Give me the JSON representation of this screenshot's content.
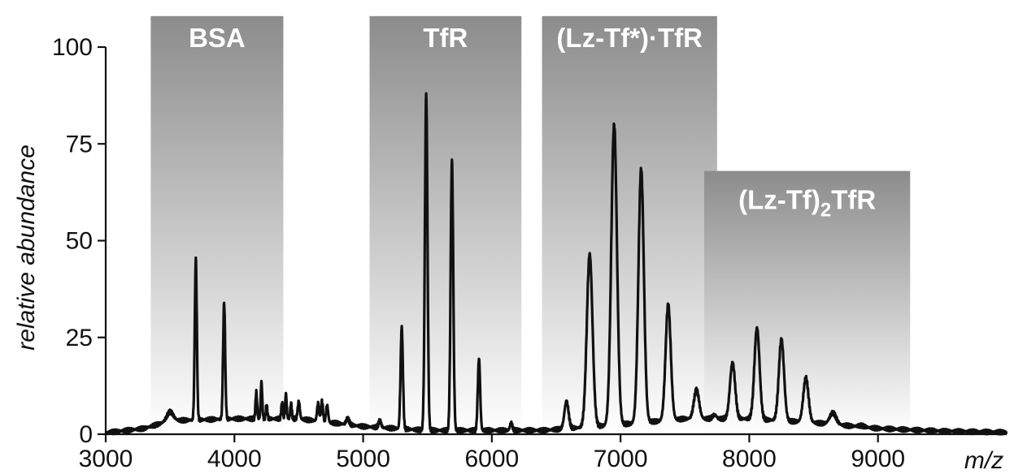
{
  "chart_data": {
    "type": "line",
    "title": "",
    "xlabel": "m/z",
    "ylabel": "relative abundance",
    "xlim": [
      3000,
      10000
    ],
    "ylim": [
      0,
      100
    ],
    "x_ticks": [
      3000,
      4000,
      5000,
      6000,
      7000,
      8000,
      9000
    ],
    "y_ticks": [
      0,
      25,
      50,
      75,
      100
    ],
    "grid": false,
    "legend": "none",
    "line_color": "#111111",
    "highlighted_regions": [
      {
        "label": "BSA",
        "label_sub": "",
        "label_end": "",
        "x_start": 3350,
        "x_end": 4380,
        "y_top": 108
      },
      {
        "label": "TfR",
        "label_sub": "",
        "label_end": "",
        "x_start": 5050,
        "x_end": 6230,
        "y_top": 108
      },
      {
        "label": "(Lz-Tf*)·TfR",
        "label_sub": "",
        "label_end": "",
        "x_start": 6390,
        "x_end": 7750,
        "y_top": 108
      },
      {
        "label": "(Lz-Tf)",
        "label_sub": "2",
        "label_end": "TfR",
        "x_start": 7650,
        "x_end": 9250,
        "y_top": 68
      }
    ],
    "region_colors": {
      "top": "#8c8c8c",
      "bottom": "#ffffff"
    },
    "baseline": [
      [
        3000,
        0.4
      ],
      [
        3300,
        1.5
      ],
      [
        3500,
        3.5
      ],
      [
        4000,
        4
      ],
      [
        4500,
        4
      ],
      [
        5000,
        2
      ],
      [
        5500,
        1
      ],
      [
        6000,
        1
      ],
      [
        6400,
        1
      ],
      [
        7000,
        2.5
      ],
      [
        7500,
        4
      ],
      [
        8000,
        4
      ],
      [
        8500,
        3
      ],
      [
        9000,
        1.5
      ],
      [
        9500,
        0.8
      ],
      [
        10000,
        0.5
      ]
    ],
    "peaks": [
      {
        "x": 3500,
        "y": 5.8,
        "w": 25
      },
      {
        "x": 3700,
        "y": 45.5,
        "w": 8
      },
      {
        "x": 3920,
        "y": 34,
        "w": 8
      },
      {
        "x": 4170,
        "y": 11,
        "w": 6
      },
      {
        "x": 4210,
        "y": 13.5,
        "w": 6
      },
      {
        "x": 4250,
        "y": 7.5,
        "w": 6
      },
      {
        "x": 4370,
        "y": 8,
        "w": 6
      },
      {
        "x": 4400,
        "y": 10.5,
        "w": 6
      },
      {
        "x": 4440,
        "y": 8,
        "w": 6
      },
      {
        "x": 4500,
        "y": 8.5,
        "w": 8
      },
      {
        "x": 4650,
        "y": 8,
        "w": 8
      },
      {
        "x": 4680,
        "y": 8.5,
        "w": 8
      },
      {
        "x": 4720,
        "y": 7.5,
        "w": 8
      },
      {
        "x": 4880,
        "y": 4,
        "w": 12
      },
      {
        "x": 5130,
        "y": 3.5,
        "w": 10
      },
      {
        "x": 5300,
        "y": 27.5,
        "w": 9
      },
      {
        "x": 5490,
        "y": 88,
        "w": 10
      },
      {
        "x": 5690,
        "y": 71,
        "w": 10
      },
      {
        "x": 5900,
        "y": 19.5,
        "w": 9
      },
      {
        "x": 6150,
        "y": 3,
        "w": 9
      },
      {
        "x": 6580,
        "y": 8.5,
        "w": 16
      },
      {
        "x": 6760,
        "y": 46.5,
        "w": 22
      },
      {
        "x": 6950,
        "y": 80,
        "w": 22
      },
      {
        "x": 7160,
        "y": 68.5,
        "w": 21
      },
      {
        "x": 7370,
        "y": 33.5,
        "w": 20
      },
      {
        "x": 7590,
        "y": 11.5,
        "w": 20
      },
      {
        "x": 7730,
        "y": 5,
        "w": 15
      },
      {
        "x": 7870,
        "y": 18.5,
        "w": 20
      },
      {
        "x": 8060,
        "y": 27.5,
        "w": 20
      },
      {
        "x": 8250,
        "y": 24.5,
        "w": 20
      },
      {
        "x": 8440,
        "y": 14.5,
        "w": 20
      },
      {
        "x": 8650,
        "y": 5.5,
        "w": 25
      },
      {
        "x": 8870,
        "y": 2.2,
        "w": 25
      }
    ]
  }
}
